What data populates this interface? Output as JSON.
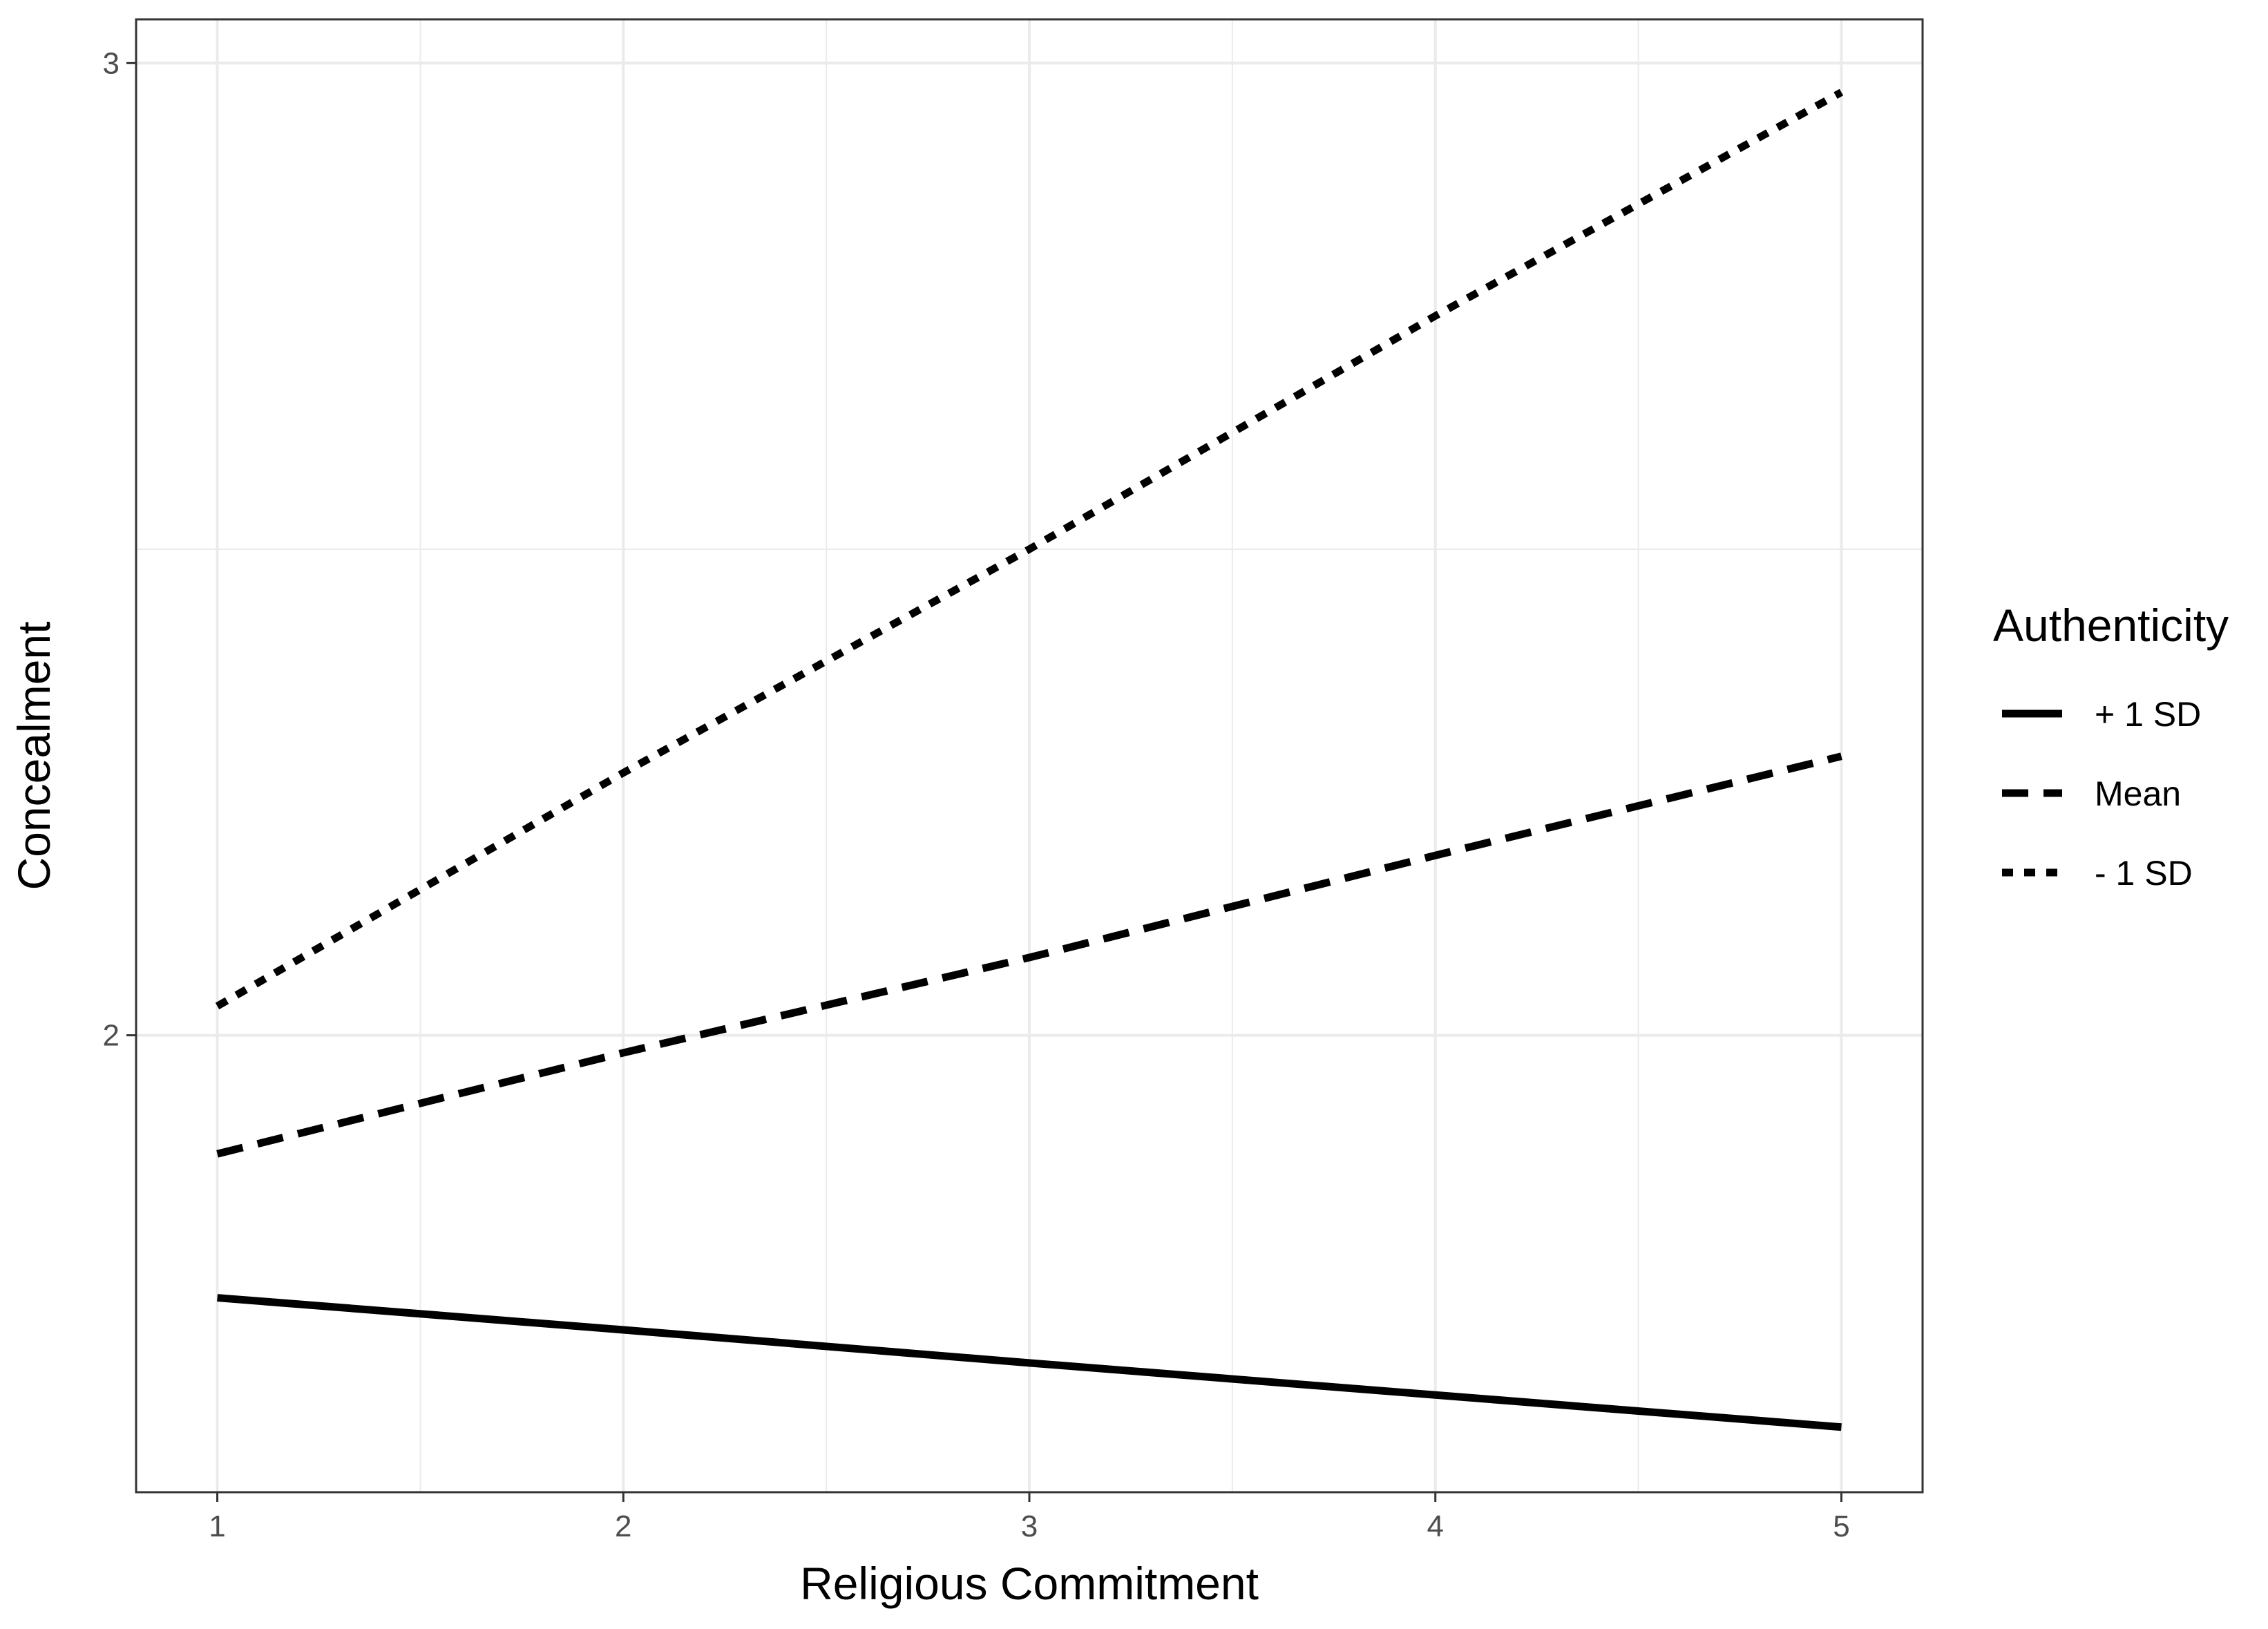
{
  "chart_data": {
    "type": "line",
    "xlabel": "Religious Commitment",
    "ylabel": "Concealment",
    "xlim": [
      0.8,
      5.2
    ],
    "ylim": [
      1.53,
      3.045
    ],
    "x_ticks": [
      1,
      2,
      3,
      4,
      5
    ],
    "y_ticks": [
      2,
      3
    ],
    "x_minor": [
      1.5,
      2.5,
      3.5,
      4.5
    ],
    "y_minor": [
      2.5
    ],
    "grid": true,
    "legend": {
      "title": "Authenticity",
      "position": "right"
    },
    "x": [
      1,
      2,
      3,
      4,
      5
    ],
    "series": [
      {
        "name": "+ 1 SD",
        "linetype": "solid",
        "values": [
          1.73,
          1.697,
          1.663,
          1.63,
          1.597
        ]
      },
      {
        "name": "Mean",
        "linetype": "dashed",
        "values": [
          1.878,
          1.982,
          2.08,
          2.185,
          2.287
        ]
      },
      {
        "name": "- 1 SD",
        "linetype": "dotted",
        "values": [
          2.03,
          2.27,
          2.5,
          2.74,
          2.97
        ]
      }
    ],
    "colors": {
      "line": "#000000",
      "grid": "#ebebeb",
      "panel_border": "#333333",
      "tick_text": "#4d4d4d"
    }
  }
}
